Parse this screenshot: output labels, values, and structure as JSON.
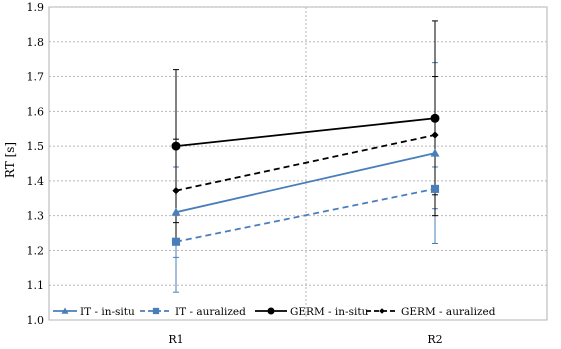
{
  "chart_data": {
    "type": "line",
    "categories": [
      "R1",
      "R2"
    ],
    "ylabel": "RT [s]",
    "xlabel": "",
    "ylim": [
      1.0,
      1.9
    ],
    "yticks": [
      "1.0",
      "1.1",
      "1.2",
      "1.3",
      "1.4",
      "1.5",
      "1.6",
      "1.7",
      "1.8",
      "1.9"
    ],
    "grid": true,
    "legend_placement": "bottom-left",
    "series": [
      {
        "name": "IT - in-situ",
        "values": [
          1.31,
          1.48
        ],
        "error_low": [
          1.18,
          1.22
        ],
        "error_high": [
          1.44,
          1.74
        ],
        "color": "#4a7ebb",
        "marker": "triangle",
        "line_style": "solid"
      },
      {
        "name": "IT - auralized",
        "values": [
          1.225,
          1.377
        ],
        "error_low": [
          1.08,
          1.32
        ],
        "error_high": [
          1.37,
          1.44
        ],
        "color": "#4a7ebb",
        "marker": "square",
        "line_style": "dashed"
      },
      {
        "name": "GERM - in-situ",
        "values": [
          1.5,
          1.58
        ],
        "error_low": [
          1.28,
          1.3
        ],
        "error_high": [
          1.72,
          1.86
        ],
        "color": "#000000",
        "marker": "circle",
        "line_style": "solid"
      },
      {
        "name": "GERM - auralized",
        "values": [
          1.372,
          1.532
        ],
        "error_low": [
          1.23,
          1.36
        ],
        "error_high": [
          1.52,
          1.7
        ],
        "color": "#000000",
        "marker": "diamond",
        "line_style": "dashed"
      }
    ]
  }
}
